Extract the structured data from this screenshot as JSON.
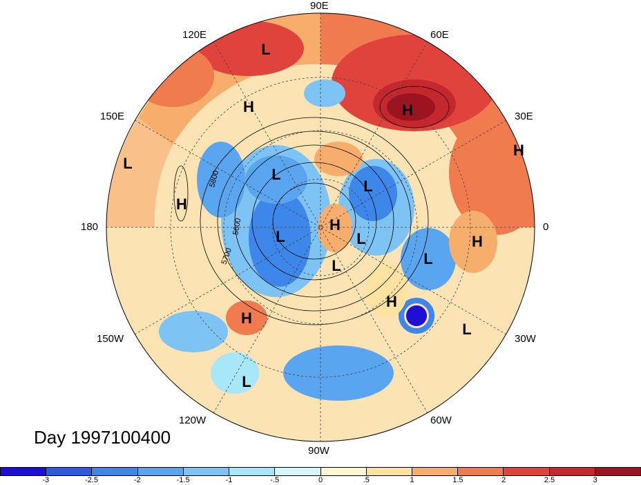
{
  "title": "Day 1997100400",
  "longitude_labels": [
    "90E",
    "60E",
    "120E",
    "150E",
    "30E",
    "180",
    "0",
    "150W",
    "30W",
    "120W",
    "60W",
    "90W"
  ],
  "pressure_systems": [
    {
      "label": "L",
      "name": "low"
    },
    {
      "label": "H",
      "name": "high"
    },
    {
      "label": "H",
      "name": "high"
    },
    {
      "label": "L",
      "name": "low"
    },
    {
      "label": "H",
      "name": "high"
    },
    {
      "label": "L",
      "name": "low"
    },
    {
      "label": "L",
      "name": "low"
    },
    {
      "label": "H",
      "name": "high"
    },
    {
      "label": "H",
      "name": "high"
    },
    {
      "label": "L",
      "name": "low"
    },
    {
      "label": "L",
      "name": "low"
    },
    {
      "label": "H",
      "name": "high"
    },
    {
      "label": "L",
      "name": "low"
    },
    {
      "label": "L",
      "name": "low"
    },
    {
      "label": "H",
      "name": "high"
    },
    {
      "label": "H",
      "name": "high"
    },
    {
      "label": "L",
      "name": "low"
    },
    {
      "label": "L",
      "name": "low"
    }
  ],
  "contour_labels": [
    "5800",
    "5600",
    "5700"
  ],
  "colorbar": {
    "ticks": [
      "-3",
      "-2.5",
      "-2",
      "-1.5",
      "-1",
      "-.5",
      "0",
      ".5",
      "1",
      "1.5",
      "2",
      "2.5",
      "3"
    ],
    "colors": [
      "#1d0fd6",
      "#2b5ae0",
      "#3d86ea",
      "#5aa5f0",
      "#7dc4f5",
      "#a8e6fa",
      "#d6f6fb",
      "#fdf8d0",
      "#fde2a0",
      "#f7ae6c",
      "#f07b4e",
      "#e0423c",
      "#c4282e",
      "#9c1420"
    ]
  }
}
